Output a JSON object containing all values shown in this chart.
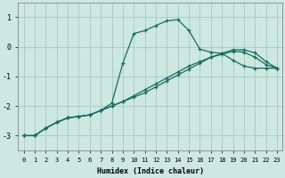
{
  "xlabel": "Humidex (Indice chaleur)",
  "bg_color": "#cce8e0",
  "grid_color": "#aacec6",
  "line_color": "#1a6b5a",
  "xlim": [
    -0.5,
    23.5
  ],
  "ylim": [
    -3.5,
    1.5
  ],
  "yticks": [
    -3,
    -2,
    -1,
    0,
    1
  ],
  "xticks": [
    0,
    1,
    2,
    3,
    4,
    5,
    6,
    7,
    8,
    9,
    10,
    11,
    12,
    13,
    14,
    15,
    16,
    17,
    18,
    19,
    20,
    21,
    22,
    23
  ],
  "series": [
    {
      "x": [
        0,
        1,
        2,
        3,
        4,
        5,
        6,
        7,
        8,
        9,
        10,
        11,
        12,
        13,
        14,
        15,
        16,
        17,
        18,
        19,
        20,
        21,
        22,
        23
      ],
      "y": [
        -3.0,
        -3.0,
        -2.75,
        -2.55,
        -2.4,
        -2.35,
        -2.3,
        -2.15,
        -1.9,
        -0.55,
        0.45,
        0.55,
        0.72,
        0.88,
        0.92,
        0.55,
        -0.08,
        -0.18,
        -0.22,
        -0.45,
        -0.65,
        -0.72,
        -0.72,
        -0.72
      ]
    },
    {
      "x": [
        0,
        1,
        2,
        3,
        4,
        5,
        6,
        7,
        8,
        9,
        10,
        11,
        12,
        13,
        14,
        15,
        16,
        17,
        18,
        19,
        20,
        21,
        22,
        23
      ],
      "y": [
        -3.0,
        -3.0,
        -2.75,
        -2.55,
        -2.4,
        -2.35,
        -2.3,
        -2.15,
        -2.0,
        -1.85,
        -1.7,
        -1.55,
        -1.35,
        -1.15,
        -0.95,
        -0.75,
        -0.55,
        -0.35,
        -0.22,
        -0.1,
        -0.1,
        -0.2,
        -0.5,
        -0.72
      ]
    },
    {
      "x": [
        0,
        1,
        2,
        3,
        4,
        5,
        6,
        7,
        8,
        9,
        10,
        11,
        12,
        13,
        14,
        15,
        16,
        17,
        18,
        19,
        20,
        21,
        22,
        23
      ],
      "y": [
        -3.0,
        -3.0,
        -2.75,
        -2.55,
        -2.4,
        -2.35,
        -2.3,
        -2.15,
        -2.0,
        -1.85,
        -1.65,
        -1.45,
        -1.25,
        -1.05,
        -0.85,
        -0.65,
        -0.5,
        -0.35,
        -0.25,
        -0.15,
        -0.18,
        -0.35,
        -0.6,
        -0.72
      ]
    }
  ]
}
